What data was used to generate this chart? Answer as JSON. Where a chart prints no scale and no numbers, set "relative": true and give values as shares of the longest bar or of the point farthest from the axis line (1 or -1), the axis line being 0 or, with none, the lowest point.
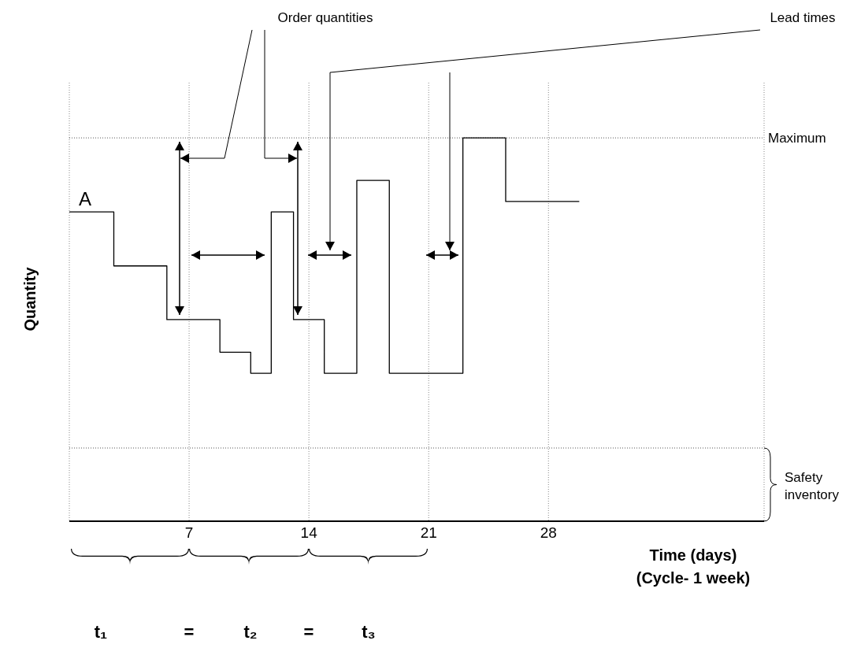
{
  "chart_data": {
    "type": "step",
    "relative": true,
    "ylabel": "Quantity",
    "xlabel": "Time (days)\n(Cycle- 1 week)",
    "x": [
      0,
      2.6,
      5.7,
      8.8,
      10.6,
      11.8,
      13.1,
      14.9,
      16.8,
      18.7,
      23.0,
      25.5,
      29.8
    ],
    "series": [
      {
        "color": "#000000",
        "values": [
          0.807,
          0.666,
          0.526,
          0.441,
          0.386,
          0.807,
          0.526,
          0.386,
          0.889,
          0.386,
          1.0,
          0.834,
          0.834
        ]
      }
    ],
    "xlim": [
      0,
      40.6
    ],
    "xticks": [
      7,
      14,
      21,
      28
    ],
    "grid": "x",
    "marker": "none",
    "line_style": "solid",
    "ref_lines": [
      {
        "axis": "y",
        "value": 1.0,
        "label": "Maximum",
        "line_style": "dotted"
      },
      {
        "axis": "y",
        "value": 0.191,
        "label": "Safety inventory",
        "line_style": "dotted"
      }
    ],
    "annotations": [
      {
        "text": "A",
        "x": 0,
        "y": 0.807
      },
      "Order quantities",
      "Lead times",
      "t₁",
      "=",
      "t₂",
      "=",
      "t₃"
    ]
  }
}
